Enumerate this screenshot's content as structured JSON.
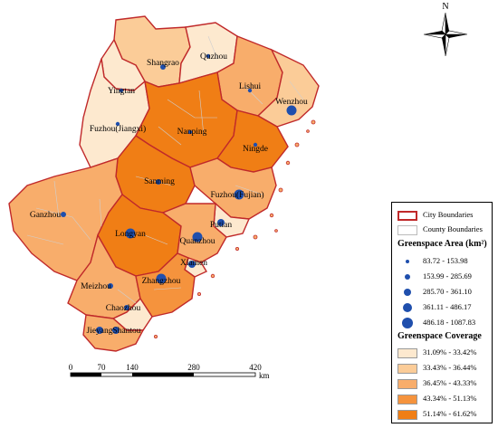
{
  "north_label": "N",
  "scale": {
    "ticks": [
      "0",
      "70",
      "140",
      "280",
      "420"
    ],
    "unit": "km"
  },
  "cities": [
    {
      "name": "Quzhou",
      "area_class": 0
    },
    {
      "name": "Shangrao",
      "area_class": 1
    },
    {
      "name": "Lishui",
      "area_class": 0
    },
    {
      "name": "Wenzhou",
      "area_class": 3
    },
    {
      "name": "Yingtan",
      "area_class": 0
    },
    {
      "name": "Fuzhou(Jiangxi)",
      "area_class": 0
    },
    {
      "name": "Nanping",
      "area_class": 0
    },
    {
      "name": "Ningde",
      "area_class": 0
    },
    {
      "name": "Sanming",
      "area_class": 1
    },
    {
      "name": "Fuzhou(Fujian)",
      "area_class": 3
    },
    {
      "name": "Ganzhou",
      "area_class": 1
    },
    {
      "name": "Putian",
      "area_class": 2
    },
    {
      "name": "Longyan",
      "area_class": 3
    },
    {
      "name": "Quanzhou",
      "area_class": 3
    },
    {
      "name": "Xiamen",
      "area_class": 2
    },
    {
      "name": "Meizhou",
      "area_class": 1
    },
    {
      "name": "Zhangzhou",
      "area_class": 3
    },
    {
      "name": "Chaozhou",
      "area_class": 1
    },
    {
      "name": "Jieyang",
      "area_class": 2
    },
    {
      "name": "Shantou",
      "area_class": 2
    }
  ],
  "legend": {
    "city_boundaries": "City Boundaries",
    "county_boundaries": "County Boundaries",
    "area_title": "Greenspace Area (km²)",
    "area_classes": [
      "83.72 - 153.98",
      "153.99 - 285.69",
      "285.70 - 361.10",
      "361.11 - 486.17",
      "486.18 - 1087.83"
    ],
    "coverage_title": "Greenspace Coverage",
    "coverage_classes": [
      "31.09% - 33.42%",
      "33.43% - 36.44%",
      "36.45% - 43.33%",
      "43.34% - 51.13%",
      "51.14% - 61.62%"
    ]
  },
  "colors": {
    "coverage": [
      "#fde9cf",
      "#fbcc98",
      "#f8ad6b",
      "#f5933d",
      "#f07e15"
    ],
    "city_boundary": "#c0292a",
    "county_boundary": "#cfcfcf",
    "dot": "#1f4fad"
  }
}
